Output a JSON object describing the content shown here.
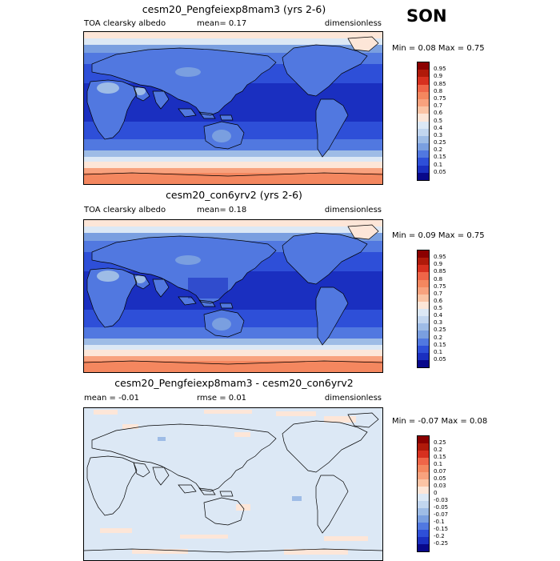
{
  "season": "SON",
  "panels": [
    {
      "title": "cesm20_Pengfeiexp8mam3 (yrs 2-6)",
      "left_label": "TOA clearsky albedo",
      "center_label": "mean=   0.17",
      "right_label": "dimensionless",
      "minmax": "Min =  0.08 Max =  0.75",
      "field": "absolute"
    },
    {
      "title": "cesm20_con6yrv2 (yrs 2-6)",
      "left_label": "TOA clearsky albedo",
      "center_label": "mean=   0.18",
      "right_label": "dimensionless",
      "minmax": "Min =  0.09 Max =  0.75",
      "field": "absolute"
    },
    {
      "title": "cesm20_Pengfeiexp8mam3 - cesm20_con6yrv2",
      "left_label": "mean =  -0.01",
      "center_label": "rmse =   0.01",
      "right_label": "dimensionless",
      "minmax": "Min =  -0.07 Max =  0.08",
      "field": "difference"
    }
  ],
  "colorbar_abs": {
    "labels": [
      "0.95",
      "0.9",
      "0.85",
      "0.8",
      "0.75",
      "0.7",
      "0.6",
      "0.5",
      "0.4",
      "0.3",
      "0.25",
      "0.2",
      "0.15",
      "0.1",
      "0.05"
    ],
    "colors": [
      "#8b0000",
      "#b01a0a",
      "#d7301f",
      "#ef6548",
      "#f4875f",
      "#f8a27e",
      "#fbc4a5",
      "#fde6d8",
      "#dce8f5",
      "#c2d6ef",
      "#9ebce6",
      "#7a9fe0",
      "#5178e0",
      "#2e4fd8",
      "#1a2fc0",
      "#08088a"
    ]
  },
  "colorbar_diff": {
    "labels": [
      "0.25",
      "0.2",
      "0.15",
      "0.1",
      "0.07",
      "0.05",
      "0.03",
      "0",
      "-0.03",
      "-0.05",
      "-0.07",
      "-0.1",
      "-0.15",
      "-0.2",
      "-0.25"
    ],
    "colors": [
      "#8b0000",
      "#b01a0a",
      "#d7301f",
      "#ef6548",
      "#f4875f",
      "#f8a27e",
      "#fbc4a5",
      "#fde6d8",
      "#dce8f5",
      "#c2d6ef",
      "#9ebce6",
      "#7a9fe0",
      "#5178e0",
      "#2e4fd8",
      "#1a2fc0",
      "#08088a"
    ]
  }
}
